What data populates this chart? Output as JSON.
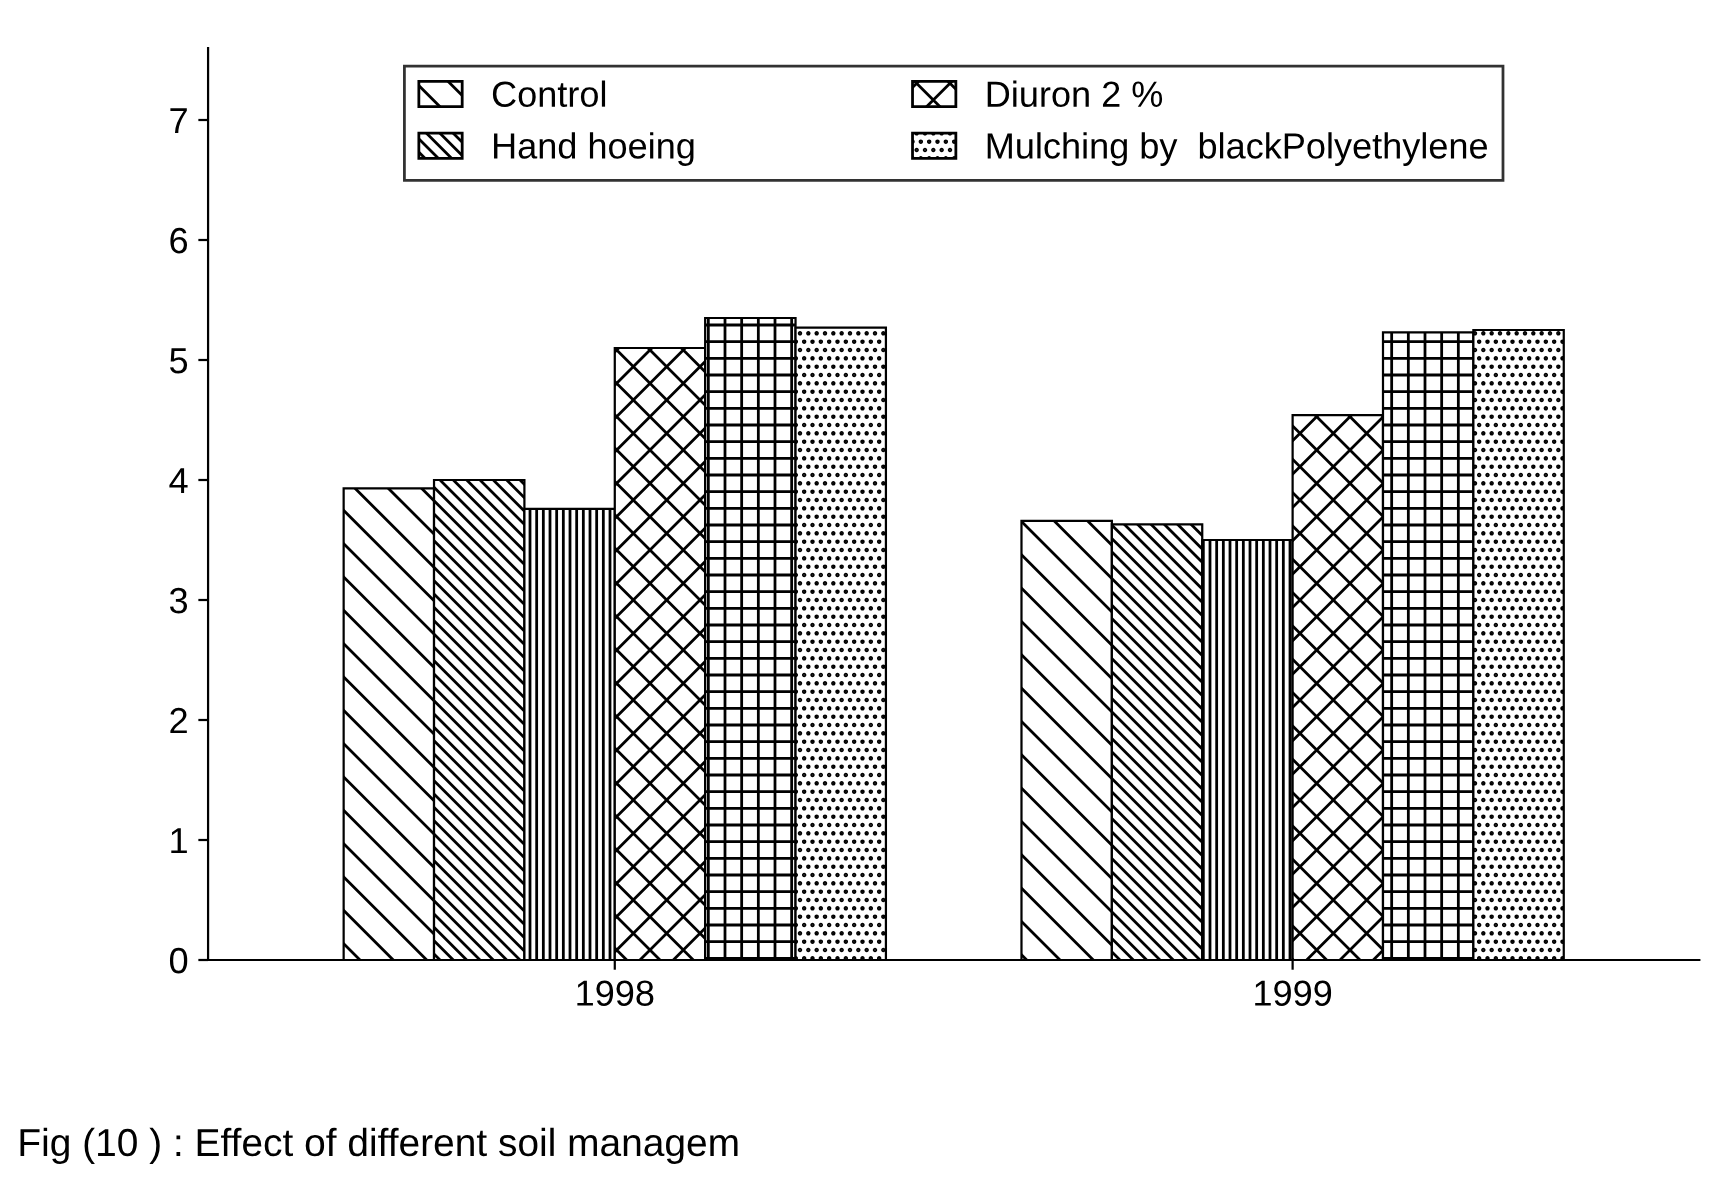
{
  "chart_data": {
    "type": "bar",
    "categories": [
      "1998",
      "1999"
    ],
    "series": [
      {
        "name": "Control",
        "color": "#000000",
        "values": [
          3.93,
          3.66
        ]
      },
      {
        "name": "Hand hoeing",
        "color": "#000000",
        "values": [
          4.0,
          3.63
        ]
      },
      {
        "color": "#000000",
        "values": [
          3.76,
          3.5
        ]
      },
      {
        "name": "Diuron 2 %",
        "color": "#000000",
        "values": [
          5.1,
          4.54
        ]
      },
      {
        "color": "#000000",
        "values": [
          5.35,
          5.23
        ]
      },
      {
        "name": "Mulching by  blackPolyethylene",
        "color": "#000000",
        "values": [
          5.27,
          5.25
        ]
      }
    ],
    "ylim": [
      0,
      7.6
    ],
    "yticks": [
      0,
      1,
      2,
      3,
      4,
      5,
      6,
      7
    ],
    "grid": false,
    "legend": "top",
    "annotations": [
      "Fig (10 ) : Effect of different soil managem"
    ]
  }
}
